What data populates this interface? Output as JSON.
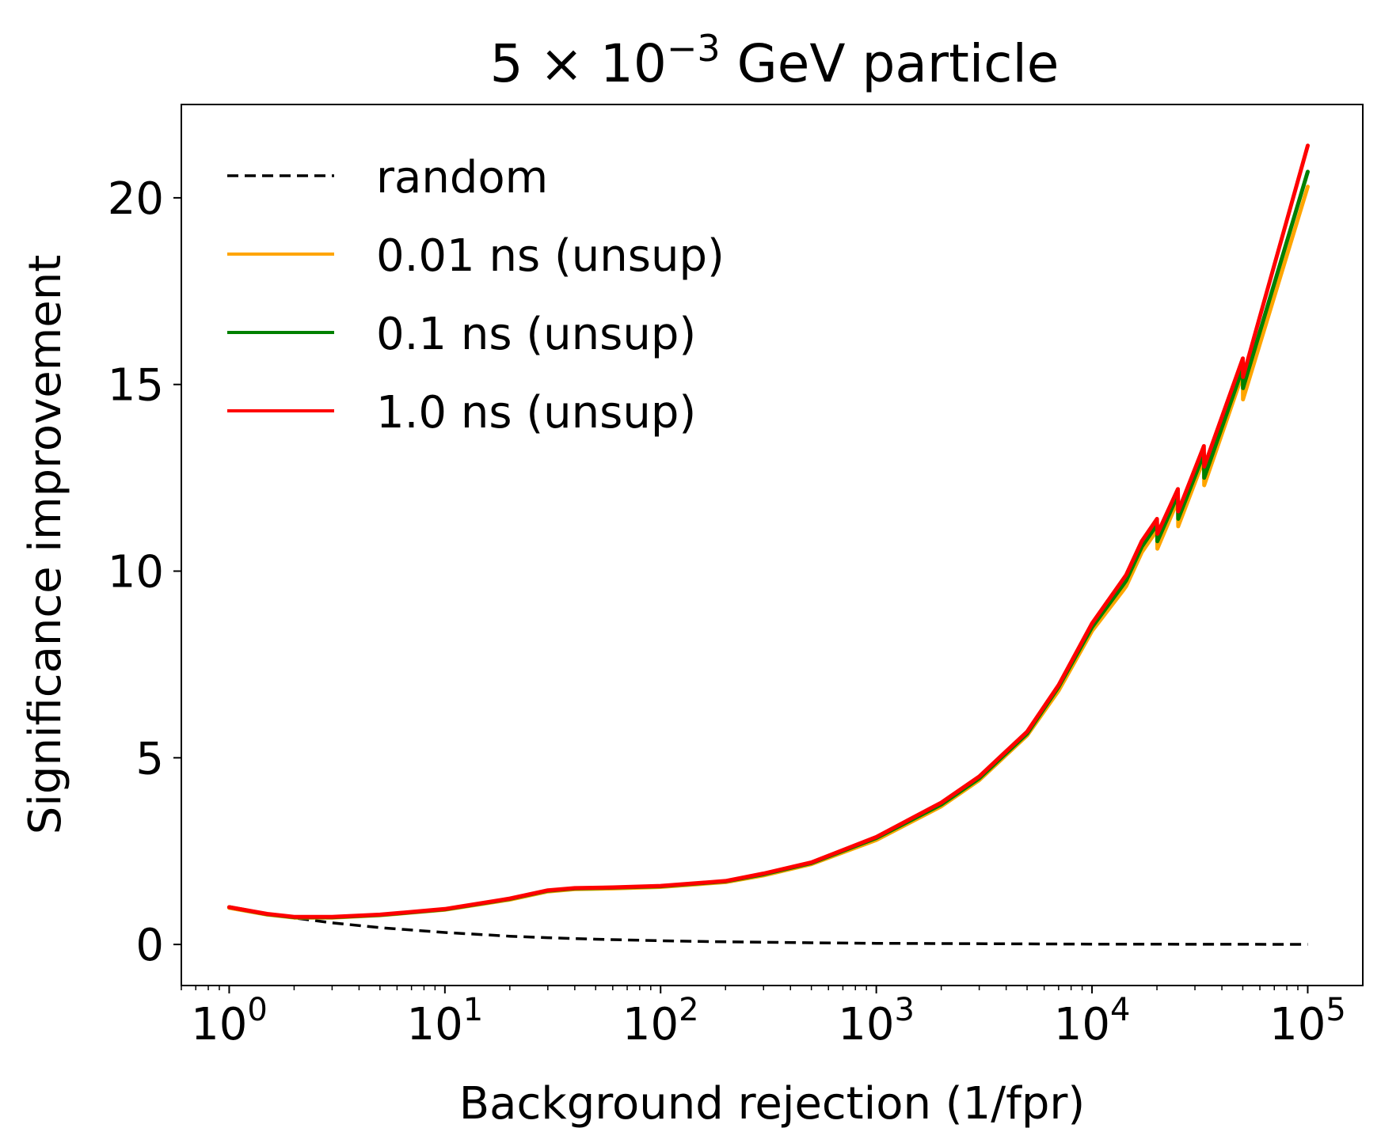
{
  "chart_data": {
    "type": "line",
    "title": {
      "base": "5 × 10",
      "exp": "−3",
      "rest": " GeV particle"
    },
    "xlabel": "Background rejection (1/fpr)",
    "ylabel": "Significance improvement",
    "xscale": "log",
    "xlim": [
      0.6,
      180000
    ],
    "ylim": [
      -1.1,
      22.5
    ],
    "grid": false,
    "legend_position": "top-left",
    "x_ticks": [
      {
        "value": 1,
        "base": "10",
        "exp": "0"
      },
      {
        "value": 10,
        "base": "10",
        "exp": "1"
      },
      {
        "value": 100,
        "base": "10",
        "exp": "2"
      },
      {
        "value": 1000,
        "base": "10",
        "exp": "3"
      },
      {
        "value": 10000,
        "base": "10",
        "exp": "4"
      },
      {
        "value": 100000,
        "base": "10",
        "exp": "5"
      }
    ],
    "y_ticks": [
      {
        "value": 0,
        "label": "0"
      },
      {
        "value": 5,
        "label": "5"
      },
      {
        "value": 10,
        "label": "10"
      },
      {
        "value": 15,
        "label": "15"
      },
      {
        "value": 20,
        "label": "20"
      }
    ],
    "series": [
      {
        "name": "random",
        "color": "#000000",
        "style": "dashed",
        "x": [
          1,
          1.5,
          2,
          3,
          5,
          10,
          20,
          30,
          50,
          100,
          200,
          500,
          1000,
          10000,
          100000
        ],
        "y": [
          1.0,
          0.82,
          0.71,
          0.58,
          0.45,
          0.32,
          0.22,
          0.18,
          0.14,
          0.1,
          0.07,
          0.045,
          0.03,
          0.01,
          0.003
        ]
      },
      {
        "name": "0.01 ns (unsup)",
        "color": "#FFA500",
        "style": "solid",
        "x": [
          1,
          1.5,
          2,
          3,
          5,
          10,
          20,
          30,
          40,
          60,
          100,
          200,
          300,
          500,
          1000,
          2000,
          3000,
          5000,
          7000,
          10000,
          14000,
          14400,
          17000,
          20000,
          20100,
          25000,
          25100,
          33000,
          33100,
          50000,
          50100,
          100000
        ],
        "y": [
          0.98,
          0.8,
          0.72,
          0.72,
          0.78,
          0.93,
          1.2,
          1.42,
          1.48,
          1.5,
          1.54,
          1.67,
          1.85,
          2.15,
          2.8,
          3.7,
          4.4,
          5.6,
          6.8,
          8.4,
          9.5,
          9.6,
          10.5,
          11.1,
          10.6,
          11.9,
          11.2,
          13.0,
          12.3,
          15.3,
          14.6,
          20.3
        ]
      },
      {
        "name": "0.1 ns (unsup)",
        "color": "#008000",
        "style": "solid",
        "x": [
          1,
          1.5,
          2,
          3,
          5,
          10,
          20,
          30,
          40,
          60,
          100,
          200,
          300,
          500,
          1000,
          2000,
          3000,
          5000,
          7000,
          10000,
          14000,
          14400,
          17000,
          20000,
          20100,
          25000,
          25100,
          33000,
          33100,
          50000,
          50100,
          100000
        ],
        "y": [
          1.0,
          0.81,
          0.73,
          0.73,
          0.79,
          0.94,
          1.22,
          1.44,
          1.5,
          1.52,
          1.56,
          1.69,
          1.88,
          2.18,
          2.85,
          3.75,
          4.45,
          5.65,
          6.9,
          8.5,
          9.65,
          9.75,
          10.65,
          11.25,
          10.8,
          12.05,
          11.4,
          13.15,
          12.5,
          15.45,
          14.9,
          20.7
        ]
      },
      {
        "name": "1.0 ns (unsup)",
        "color": "#FF0000",
        "style": "solid",
        "x": [
          1,
          1.5,
          2,
          3,
          5,
          10,
          20,
          30,
          40,
          60,
          100,
          200,
          300,
          500,
          1000,
          2000,
          3000,
          5000,
          7000,
          10000,
          14000,
          14400,
          17000,
          20000,
          20100,
          25000,
          25100,
          33000,
          33100,
          50000,
          50100,
          100000
        ],
        "y": [
          1.0,
          0.82,
          0.74,
          0.74,
          0.8,
          0.95,
          1.23,
          1.45,
          1.51,
          1.53,
          1.57,
          1.7,
          1.9,
          2.2,
          2.88,
          3.8,
          4.5,
          5.7,
          6.95,
          8.6,
          9.8,
          9.9,
          10.8,
          11.4,
          11.0,
          12.2,
          11.6,
          13.35,
          12.8,
          15.7,
          15.2,
          21.4
        ]
      }
    ]
  }
}
